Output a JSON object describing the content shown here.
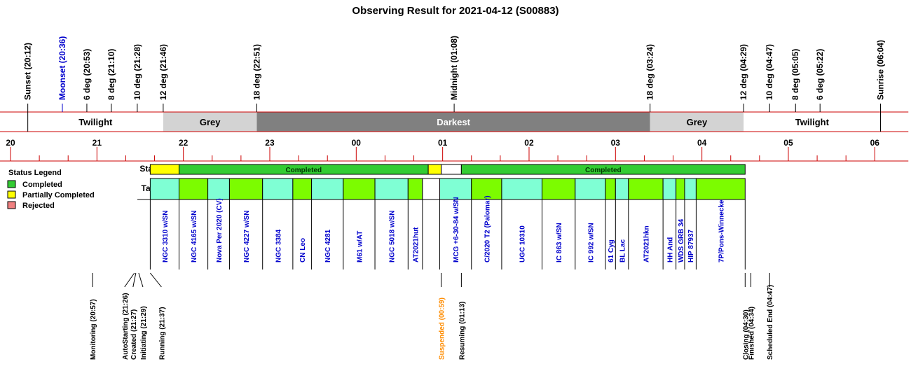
{
  "chart_data": {
    "type": "timeline",
    "title": "Observing Result for 2021-04-12 (S00883)",
    "x_axis": {
      "range": [
        "19:50",
        "06:17"
      ],
      "hour_labels": [
        "20",
        "21",
        "22",
        "23",
        "00",
        "01",
        "02",
        "03",
        "04",
        "05",
        "06"
      ],
      "minor_tick_minutes": 20
    },
    "sky_events": [
      {
        "label": "Sunset (20:12)",
        "time": "20:12",
        "color": "#000000"
      },
      {
        "label": "Moonset (20:36)",
        "time": "20:36",
        "color": "#0000cc"
      },
      {
        "label": "6 deg (20:53)",
        "time": "20:53",
        "color": "#000000"
      },
      {
        "label": "8 deg (21:10)",
        "time": "21:10",
        "color": "#000000"
      },
      {
        "label": "10 deg (21:28)",
        "time": "21:28",
        "color": "#000000"
      },
      {
        "label": "12 deg (21:46)",
        "time": "21:46",
        "color": "#000000"
      },
      {
        "label": "18 deg (22:51)",
        "time": "22:51",
        "color": "#000000"
      },
      {
        "label": "Midnight (01:08)",
        "time": "01:08",
        "color": "#000000"
      },
      {
        "label": "18 deg (03:24)",
        "time": "03:24",
        "color": "#000000"
      },
      {
        "label": "12 deg (04:29)",
        "time": "04:29",
        "color": "#000000"
      },
      {
        "label": "10 deg (04:47)",
        "time": "04:47",
        "color": "#000000"
      },
      {
        "label": "8 deg (05:05)",
        "time": "05:05",
        "color": "#000000"
      },
      {
        "label": "6 deg (05:22)",
        "time": "05:22",
        "color": "#000000"
      },
      {
        "label": "Sunrise (06:04)",
        "time": "06:04",
        "color": "#000000"
      }
    ],
    "sky_bands": [
      {
        "label": "Twilight",
        "start": "20:12",
        "end": "21:46",
        "fill": "#ffffff",
        "text_color": "#000000"
      },
      {
        "label": "Grey",
        "start": "21:46",
        "end": "22:51",
        "fill": "#d3d3d3",
        "text_color": "#000000"
      },
      {
        "label": "Darkest",
        "start": "22:51",
        "end": "03:24",
        "fill": "#808080",
        "text_color": "#ffffff"
      },
      {
        "label": "Grey",
        "start": "03:24",
        "end": "04:29",
        "fill": "#d3d3d3",
        "text_color": "#000000"
      },
      {
        "label": "Twilight",
        "start": "04:29",
        "end": "06:04",
        "fill": "#ffffff",
        "text_color": "#000000"
      }
    ],
    "status_row_label": "Status",
    "targets_row_label": "Targets",
    "status_segments": [
      {
        "start": "21:37",
        "end": "21:57",
        "status": "Partially Completed",
        "label": ""
      },
      {
        "start": "21:57",
        "end": "00:50",
        "status": "Completed",
        "label": "Completed"
      },
      {
        "start": "00:50",
        "end": "00:59",
        "status": "Partially Completed",
        "label": ""
      },
      {
        "start": "00:59",
        "end": "01:13",
        "status": "None",
        "label": ""
      },
      {
        "start": "01:13",
        "end": "04:30",
        "status": "Completed",
        "label": "Completed"
      }
    ],
    "targets": [
      {
        "name": "NGC 3310 w/SN",
        "start": "21:37",
        "end": "21:57",
        "color": "#7fffd4"
      },
      {
        "name": "NGC 4165 w/SN",
        "start": "21:57",
        "end": "22:17",
        "color": "#7cfc00"
      },
      {
        "name": "Nova Per 2020 (CV)",
        "start": "22:17",
        "end": "22:32",
        "color": "#7fffd4"
      },
      {
        "name": "NGC 4227 w/SN",
        "start": "22:32",
        "end": "22:55",
        "color": "#7cfc00"
      },
      {
        "name": "NGC 3384",
        "start": "22:55",
        "end": "23:16",
        "color": "#7fffd4"
      },
      {
        "name": "CN Leo",
        "start": "23:16",
        "end": "23:29",
        "color": "#7cfc00"
      },
      {
        "name": "NGC 4281",
        "start": "23:29",
        "end": "23:51",
        "color": "#7fffd4"
      },
      {
        "name": "M61 w/AT",
        "start": "23:51",
        "end": "00:13",
        "color": "#7cfc00"
      },
      {
        "name": "NGC 5018 w/SN",
        "start": "00:13",
        "end": "00:36",
        "color": "#7fffd4"
      },
      {
        "name": "AT2021hut",
        "start": "00:36",
        "end": "00:46",
        "color": "#7cfc00"
      },
      {
        "name": "",
        "start": "00:46",
        "end": "00:58",
        "color": "#ffffff"
      },
      {
        "name": "MCG +6-30-84 w/SN",
        "start": "00:58",
        "end": "01:20",
        "color": "#7fffd4"
      },
      {
        "name": "C/2020 T2 (Palomar)",
        "start": "01:20",
        "end": "01:41",
        "color": "#7cfc00"
      },
      {
        "name": "UGC 10310",
        "start": "01:41",
        "end": "02:09",
        "color": "#7fffd4"
      },
      {
        "name": "IC 863 w/SN",
        "start": "02:09",
        "end": "02:32",
        "color": "#7cfc00"
      },
      {
        "name": "IC 992 w/SN",
        "start": "02:32",
        "end": "02:53",
        "color": "#7fffd4"
      },
      {
        "name": "61 Cyg",
        "start": "02:53",
        "end": "03:00",
        "color": "#7cfc00"
      },
      {
        "name": "BL Lac",
        "start": "03:00",
        "end": "03:09",
        "color": "#7fffd4"
      },
      {
        "name": "AT2021hkn",
        "start": "03:09",
        "end": "03:33",
        "color": "#7cfc00"
      },
      {
        "name": "HH And",
        "start": "03:33",
        "end": "03:42",
        "color": "#7fffd4"
      },
      {
        "name": "WDS GRB 34",
        "start": "03:42",
        "end": "03:48",
        "color": "#7cfc00"
      },
      {
        "name": "HIP 87937",
        "start": "03:48",
        "end": "03:56",
        "color": "#7fffd4"
      },
      {
        "name": "7P/Pons-Winnecke",
        "start": "03:56",
        "end": "04:30",
        "color": "#7cfc00"
      }
    ],
    "operation_events": [
      {
        "label": "Monitoring (20:57)",
        "time": "20:57",
        "color": "#000000"
      },
      {
        "label": "AutoStarting (21:26)",
        "time": "21:26",
        "color": "#000000"
      },
      {
        "label": "Created (21:27)",
        "time": "21:27",
        "color": "#000000"
      },
      {
        "label": "Initiating (21:29)",
        "time": "21:29",
        "color": "#000000"
      },
      {
        "label": "Running (21:37)",
        "time": "21:37",
        "color": "#000000"
      },
      {
        "label": "Suspended (00:59)",
        "time": "00:59",
        "color": "#ff8c00"
      },
      {
        "label": "Resuming (01:13)",
        "time": "01:13",
        "color": "#000000"
      },
      {
        "label": "Closing (04:30)",
        "time": "04:30",
        "color": "#000000"
      },
      {
        "label": "Finished (04:34)",
        "time": "04:34",
        "color": "#000000"
      },
      {
        "label": "Scheduled End (04:47)",
        "time": "04:47",
        "color": "#000000"
      }
    ],
    "legend": {
      "title": "Status Legend",
      "placement": "left",
      "items": [
        {
          "label": "Completed",
          "color": "#33cc33"
        },
        {
          "label": "Partially Completed",
          "color": "#ffff00"
        },
        {
          "label": "Rejected",
          "color": "#f08080"
        }
      ]
    },
    "colors": {
      "completed": "#33cc33",
      "partially_completed": "#ffff00",
      "axis_line": "#cc0000"
    }
  }
}
